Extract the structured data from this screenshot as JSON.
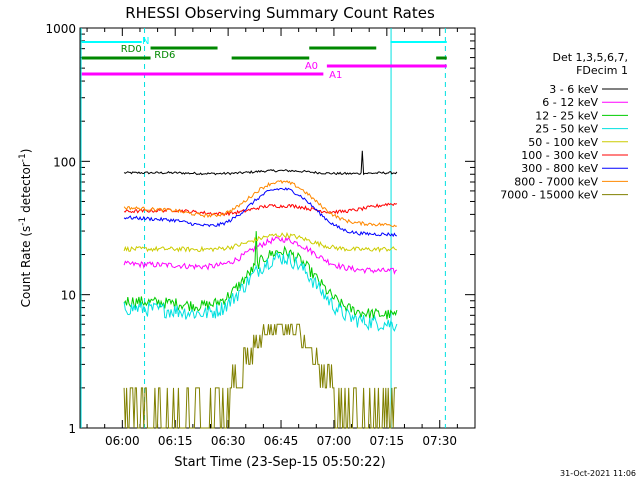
{
  "chart_data": {
    "type": "line",
    "title": "RHESSI Observing Summary Count Rates",
    "xlabel": "Start Time (23-Sep-15 05:50:22)",
    "ylabel_main": "Count Rate (s",
    "ylabel_sup1": "-1",
    "ylabel_mid": " detector",
    "ylabel_sup2": "-1",
    "ylabel_end": ")",
    "yscale": "log",
    "ylim": [
      1,
      1000
    ],
    "xlim_minutes": [
      -12.0,
      100.0
    ],
    "x_ticks": [
      {
        "label": "06:00",
        "minute": 0
      },
      {
        "label": "06:15",
        "minute": 15
      },
      {
        "label": "06:30",
        "minute": 30
      },
      {
        "label": "06:45",
        "minute": 45
      },
      {
        "label": "07:00",
        "minute": 60
      },
      {
        "label": "07:15",
        "minute": 75
      },
      {
        "label": "07:30",
        "minute": 90
      }
    ],
    "y_ticks": [
      {
        "label": "1",
        "value": 1
      },
      {
        "label": "10",
        "value": 10
      },
      {
        "label": "100",
        "value": 100
      },
      {
        "label": "1000",
        "value": 1000
      }
    ],
    "legend_title": [
      "Det 1,3,5,6,7,",
      "FDecim 1"
    ],
    "series": [
      {
        "name": "3 - 6 keV",
        "color": "#000000",
        "start": 82,
        "mid": 78,
        "peak": 85,
        "end": 82,
        "noise": 0.02,
        "spikes": [
          [
            68,
            120
          ]
        ]
      },
      {
        "name": "6 - 12 keV",
        "color": "#ff00ff",
        "start": 17,
        "mid": 15,
        "peak": 26,
        "end": 15,
        "noise": 0.05
      },
      {
        "name": "12 - 25 keV",
        "color": "#00cc00",
        "start": 9,
        "mid": 7,
        "peak": 21,
        "end": 7,
        "noise": 0.1,
        "spikes": [
          [
            38,
            30
          ]
        ]
      },
      {
        "name": "25 - 50 keV",
        "color": "#00e0e0",
        "start": 8,
        "mid": 6,
        "peak": 19,
        "end": 6,
        "noise": 0.13
      },
      {
        "name": "50 - 100 keV",
        "color": "#cccc00",
        "start": 22,
        "mid": 21,
        "peak": 28,
        "end": 22,
        "noise": 0.04
      },
      {
        "name": "100 - 300 keV",
        "color": "#ff0000",
        "start": 42,
        "mid": 33,
        "peak": 46,
        "end": 48,
        "noise": 0.03
      },
      {
        "name": "300 - 800 keV",
        "color": "#0000ff",
        "start": 38,
        "mid": 25,
        "peak": 62,
        "end": 28,
        "noise": 0.03
      },
      {
        "name": "800 - 7000 keV",
        "color": "#ff8800",
        "start": 45,
        "mid": 31,
        "peak": 70,
        "end": 33,
        "noise": 0.03
      },
      {
        "name": "7000 - 15000 keV",
        "color": "#808000",
        "start": 1.5,
        "mid": 1.6,
        "peak": 6.5,
        "end": 1.5,
        "noise": 0.0
      }
    ],
    "data_span_minutes": [
      0.5,
      78.0
    ],
    "peak_minute": 45,
    "annotations": {
      "N": {
        "label": "N",
        "color": "#00ffff",
        "segments": [
          [
            -11.5,
            5.5
          ],
          [
            76,
            92
          ]
        ]
      },
      "RD0": {
        "label": "RD0",
        "color": "#008800",
        "segments": [
          [
            8,
            27
          ],
          [
            53,
            72
          ]
        ]
      },
      "RD6": {
        "label": "RD6",
        "color": "#008800",
        "segments": [
          [
            -11.5,
            8
          ],
          [
            31,
            53
          ],
          [
            89,
            92
          ]
        ]
      },
      "A0": {
        "label": "A0",
        "color": "#ff00ff",
        "segments": [
          [
            58,
            92
          ]
        ]
      },
      "A1": {
        "label": "A1",
        "color": "#ff00ff",
        "segments": [
          [
            -11.5,
            57
          ]
        ]
      }
    },
    "saa_lines_minutes": [
      -11.7,
      6.3,
      76.2,
      91.6
    ],
    "footer_date": "31-Oct-2021 11:06"
  }
}
